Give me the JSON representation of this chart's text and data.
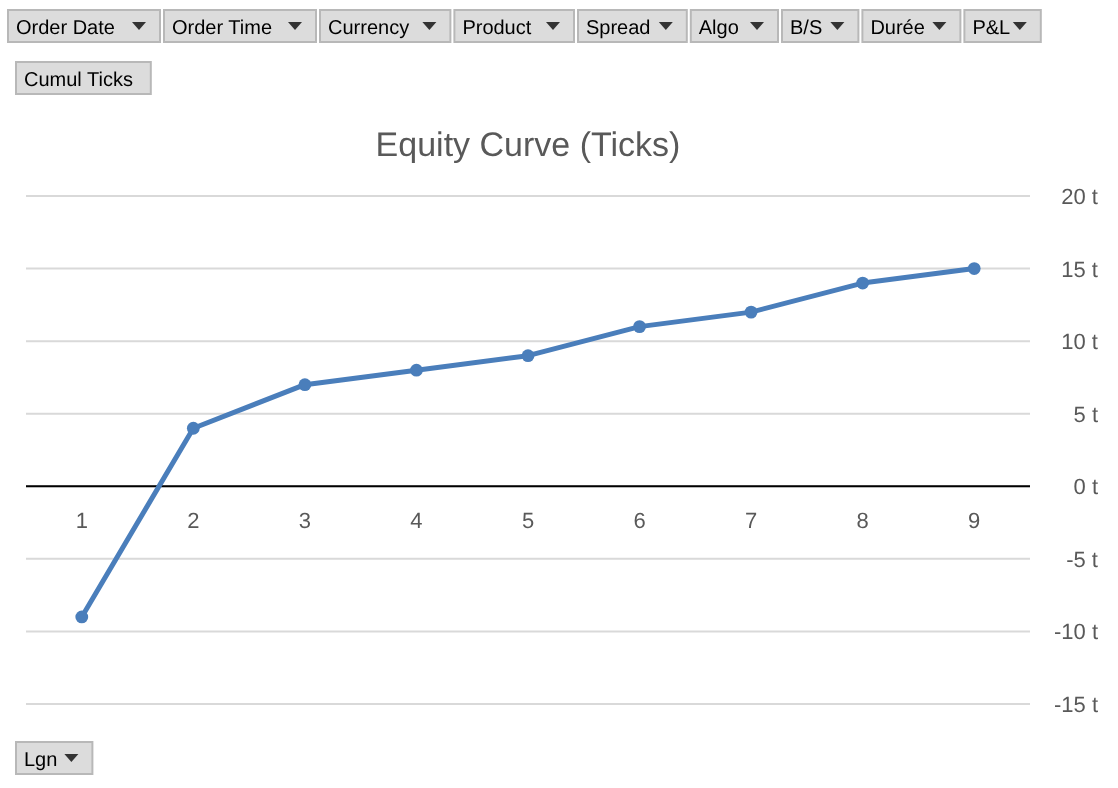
{
  "chart_data": {
    "type": "line",
    "title": "Equity Curve (Ticks)",
    "categories": [
      "1",
      "2",
      "3",
      "4",
      "5",
      "6",
      "7",
      "8",
      "9"
    ],
    "series": [
      {
        "color": "#4a7ebb",
        "values": [
          -9,
          4,
          7,
          8,
          9,
          11,
          12,
          14,
          15
        ]
      }
    ],
    "ylim": [
      -15,
      20
    ],
    "yticks": [
      {
        "value": -15,
        "label": "-15 t"
      },
      {
        "value": -10,
        "label": "-10 t"
      },
      {
        "value": -5,
        "label": "-5 t"
      },
      {
        "value": 0,
        "label": "0 t"
      },
      {
        "value": 5,
        "label": "5 t"
      },
      {
        "value": 10,
        "label": "10 t"
      },
      {
        "value": 15,
        "label": "15 t"
      },
      {
        "value": 20,
        "label": "20 t"
      }
    ],
    "grid": "y",
    "marker": "circle",
    "line_style": "solid",
    "annotations": [
      "Order Date",
      "Order Time",
      "Currency",
      "Product",
      "Spread",
      "Algo",
      "B/S",
      "Durée",
      "P&L",
      "Cumul Ticks",
      "Lgn"
    ]
  }
}
